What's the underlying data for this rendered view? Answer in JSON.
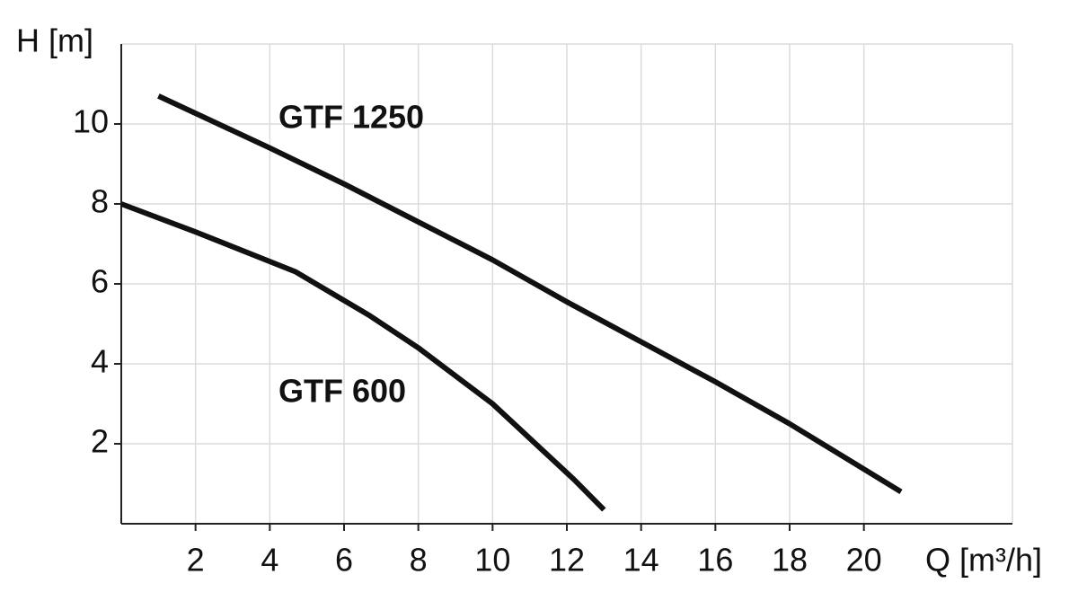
{
  "chart_data": {
    "type": "line",
    "x_label": "Q [m³/h]",
    "y_label": "H [m]",
    "xlim": [
      0,
      24
    ],
    "ylim": [
      0,
      12
    ],
    "xticks": [
      2,
      4,
      6,
      8,
      10,
      12,
      14,
      16,
      18,
      20
    ],
    "yticks": [
      2,
      4,
      6,
      8,
      10
    ],
    "grid": true,
    "series": [
      {
        "name": "GTF 1250",
        "color": "#111111",
        "x": [
          1,
          4,
          6,
          8,
          10,
          12,
          14,
          16,
          18,
          21
        ],
        "values": [
          10.7,
          9.4,
          8.5,
          7.55,
          6.6,
          5.55,
          4.55,
          3.55,
          2.5,
          0.8
        ]
      },
      {
        "name": "GTF 600",
        "color": "#111111",
        "x": [
          0,
          2,
          4.7,
          6.7,
          8,
          10,
          12.2,
          13
        ],
        "values": [
          8.0,
          7.3,
          6.3,
          5.2,
          4.4,
          3.0,
          1.1,
          0.35
        ]
      }
    ]
  }
}
